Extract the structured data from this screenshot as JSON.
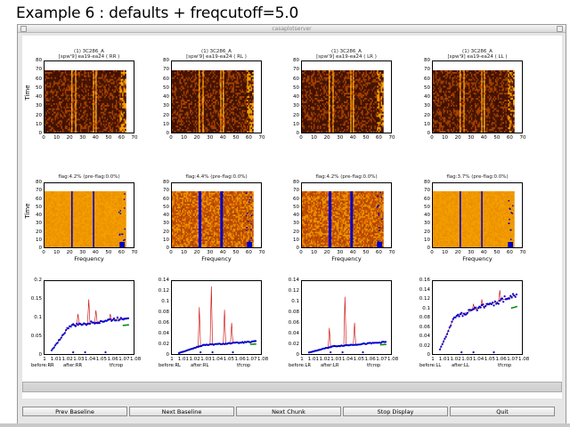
{
  "caption": "Example 6 :  defaults + freqcutoff=5.0",
  "window": {
    "title": "casaplotserver"
  },
  "panels": [
    {
      "title_line1": "(1) 3C286_A",
      "title_line2": "[spw'9] ea19-ea24  ( RR )",
      "flag_title": "flag:4.2% (pre-flag:0.0%)",
      "spec_yticks": [
        "0",
        "0.05",
        "0.1",
        "0.15",
        "0.2"
      ],
      "spec_ymax": 0.2,
      "legend": [
        "before:RR",
        "after:RR",
        "tfcrop"
      ]
    },
    {
      "title_line1": "(1) 3C286_A",
      "title_line2": "[spw'9] ea19-ea24  ( RL )",
      "flag_title": "flag:4.4% (pre-flag:0.0%)",
      "spec_yticks": [
        "0",
        "0.02",
        "0.04",
        "0.06",
        "0.08",
        "0.1",
        "0.12",
        "0.14"
      ],
      "spec_ymax": 0.14,
      "legend": [
        "before:RL",
        "after:RL",
        "tfcrop"
      ]
    },
    {
      "title_line1": "(1) 3C286_A",
      "title_line2": "[spw'9] ea19-ea24  ( LR )",
      "flag_title": "flag:4.2% (pre-flag:0.0%)",
      "spec_yticks": [
        "0",
        "0.02",
        "0.04",
        "0.06",
        "0.08",
        "0.1",
        "0.12",
        "0.14"
      ],
      "spec_ymax": 0.14,
      "legend": [
        "before:LR",
        "after:LR",
        "tfcrop"
      ]
    },
    {
      "title_line1": "(1) 3C286_A",
      "title_line2": "[spw'9] ea19-ea24  ( LL )",
      "flag_title": "flag:3.7% (pre-flag:0.0%)",
      "spec_yticks": [
        "0",
        "0.02",
        "0.04",
        "0.06",
        "0.08",
        "0.1",
        "0.12",
        "0.14",
        "0.16"
      ],
      "spec_ymax": 0.16,
      "legend": [
        "before:LL",
        "after:LL",
        "tfcrop"
      ]
    }
  ],
  "axes": {
    "time_label": "Time",
    "freq_label": "Frequency",
    "time_ticks": [
      "0",
      "10",
      "20",
      "30",
      "40",
      "50",
      "60",
      "70",
      "80"
    ],
    "chan_ticks": [
      "0",
      "10",
      "20",
      "30",
      "40",
      "50",
      "60",
      "70"
    ],
    "spec_xticks": [
      "1",
      "1.01",
      "1.02",
      "1.03",
      "1.04",
      "1.05",
      "1.06",
      "1.07",
      "1.08"
    ]
  },
  "colors": {
    "waterfall_dark": "#1a0a00",
    "waterfall_mid": "#ff8c00",
    "flag_blue": "#0000cc",
    "before_line": "#cc0000",
    "after_dot": "#0000cc",
    "tfcrop_dot": "#008800"
  },
  "buttons": [
    {
      "label": "Prev Baseline"
    },
    {
      "label": "Next Baseline"
    },
    {
      "label": "Next Chunk"
    },
    {
      "label": "Stop Display"
    },
    {
      "label": "Quit"
    }
  ]
}
